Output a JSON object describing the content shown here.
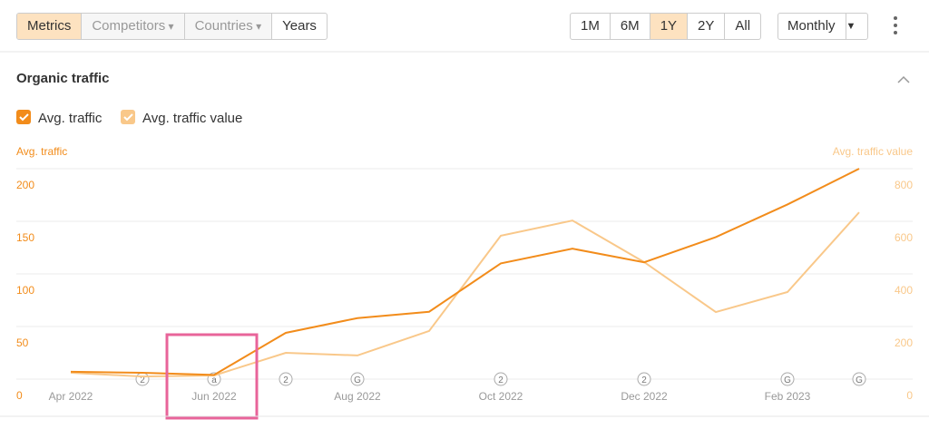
{
  "toolbar": {
    "tabs": [
      "Metrics",
      "Competitors",
      "Countries",
      "Years"
    ],
    "periods": [
      "1M",
      "6M",
      "1Y",
      "2Y",
      "All"
    ],
    "interval": "Monthly"
  },
  "section": {
    "title": "Organic traffic"
  },
  "chart_data": {
    "type": "line",
    "categories": [
      "Apr 2022",
      null,
      "Jun 2022",
      null,
      "Aug 2022",
      null,
      "Oct 2022",
      null,
      "Dec 2022",
      null,
      "Feb 2023",
      null
    ],
    "annotations": [
      null,
      "2",
      "a",
      "2",
      "G",
      null,
      "2",
      null,
      "2",
      null,
      "G",
      "G"
    ],
    "series": [
      {
        "name": "Avg. traffic",
        "color": "#f28c1b",
        "values": [
          7,
          6,
          4,
          44,
          58,
          64,
          110,
          124,
          111,
          135,
          166,
          200
        ]
      },
      {
        "name": "Avg. traffic value",
        "color": "#f9c88a",
        "axis": "y2",
        "values": [
          24,
          10,
          14,
          100,
          90,
          183,
          545,
          603,
          445,
          255,
          331,
          634
        ]
      }
    ],
    "ylabel": "Avg. traffic",
    "y2label": "Avg. traffic value",
    "ylim": [
      0,
      200
    ],
    "yticks": [
      0,
      50,
      100,
      150,
      200
    ],
    "y2lim": [
      0,
      800
    ],
    "y2ticks": [
      0,
      200,
      400,
      600,
      800
    ],
    "grid": true
  }
}
